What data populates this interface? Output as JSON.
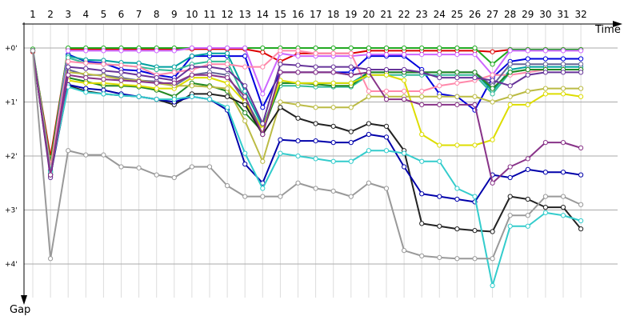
{
  "chart_data": {
    "type": "line",
    "xlabel": "Time",
    "ylabel": "Gap",
    "x": [
      1,
      2,
      3,
      4,
      5,
      6,
      7,
      8,
      9,
      10,
      11,
      12,
      13,
      14,
      15,
      16,
      17,
      18,
      19,
      20,
      21,
      22,
      23,
      24,
      25,
      26,
      27,
      28,
      29,
      30,
      31,
      32
    ],
    "x_tick_labels": [
      "1",
      "2",
      "3",
      "4",
      "5",
      "6",
      "7",
      "8",
      "9",
      "10",
      "11",
      "12",
      "13",
      "14",
      "15",
      "16",
      "17",
      "18",
      "19",
      "20",
      "21",
      "22",
      "23",
      "24",
      "25",
      "26",
      "27",
      "28",
      "29",
      "30",
      "31",
      "32"
    ],
    "y_tick_labels": [
      "+0'",
      "+1'",
      "+2'",
      "+3'",
      "+4'"
    ],
    "y_tick_values": [
      0,
      1,
      2,
      3,
      4
    ],
    "ylim": [
      -0.45,
      4.75
    ],
    "y_inverted": true,
    "series": [
      {
        "color": "#dd0000",
        "values": [
          0.07,
          2.02,
          0.02,
          0.02,
          0.02,
          0.02,
          0.02,
          0.02,
          0.02,
          0.02,
          0.02,
          0.02,
          0.02,
          0.08,
          0.25,
          0.1,
          0.1,
          0.1,
          0.1,
          0.05,
          0.05,
          0.05,
          0.05,
          0.05,
          0.05,
          0.05,
          0.07,
          0.03,
          0.03,
          0.03,
          0.03,
          0.03
        ]
      },
      {
        "color": "#22aa22",
        "values": [
          0.02,
          2.12,
          0.0,
          0.0,
          0.0,
          0.0,
          0.0,
          0.0,
          0.0,
          0.0,
          0.0,
          0.0,
          0.0,
          0.0,
          0.0,
          0.0,
          0.0,
          0.0,
          0.0,
          0.0,
          0.0,
          0.0,
          0.0,
          0.0,
          0.0,
          0.0,
          0.3,
          0.03,
          0.03,
          0.03,
          0.03,
          0.03
        ]
      },
      {
        "color": "#0000dd",
        "values": [
          0.05,
          2.35,
          0.12,
          0.25,
          0.28,
          0.4,
          0.42,
          0.5,
          0.55,
          0.15,
          0.15,
          0.15,
          0.15,
          1.1,
          0.45,
          0.45,
          0.45,
          0.45,
          0.45,
          0.15,
          0.15,
          0.15,
          0.4,
          0.85,
          0.9,
          1.15,
          0.55,
          0.25,
          0.2,
          0.2,
          0.2,
          0.2
        ]
      },
      {
        "color": "#cc66ff",
        "values": [
          0.05,
          2.25,
          0.05,
          0.05,
          0.05,
          0.05,
          0.05,
          0.05,
          0.05,
          0.0,
          0.0,
          0.0,
          0.0,
          0.85,
          0.1,
          0.15,
          0.15,
          0.15,
          0.15,
          0.12,
          0.12,
          0.12,
          0.12,
          0.12,
          0.12,
          0.12,
          0.5,
          0.05,
          0.05,
          0.05,
          0.05,
          0.05
        ]
      },
      {
        "color": "#00a0a0",
        "values": [
          0.05,
          2.28,
          0.15,
          0.22,
          0.23,
          0.27,
          0.28,
          0.35,
          0.35,
          0.15,
          0.1,
          0.1,
          0.8,
          1.45,
          0.65,
          0.65,
          0.65,
          0.65,
          0.65,
          0.45,
          0.45,
          0.45,
          0.45,
          0.45,
          0.45,
          0.45,
          0.8,
          0.4,
          0.35,
          0.35,
          0.35,
          0.35
        ]
      },
      {
        "color": "#33bb99",
        "values": [
          0.05,
          2.3,
          0.18,
          0.28,
          0.3,
          0.32,
          0.35,
          0.4,
          0.42,
          0.3,
          0.25,
          0.25,
          0.95,
          1.5,
          0.7,
          0.7,
          0.72,
          0.72,
          0.72,
          0.5,
          0.5,
          0.5,
          0.5,
          0.5,
          0.5,
          0.5,
          0.85,
          0.45,
          0.4,
          0.4,
          0.4,
          0.4
        ]
      },
      {
        "color": "#ff88aa",
        "values": [
          0.05,
          2.2,
          0.25,
          0.28,
          0.3,
          0.32,
          0.35,
          0.5,
          0.45,
          0.4,
          0.3,
          0.3,
          0.35,
          0.35,
          0.05,
          0.05,
          0.1,
          0.1,
          0.1,
          0.8,
          0.8,
          0.8,
          0.8,
          0.7,
          0.65,
          0.6,
          0.5,
          0.5,
          0.45,
          0.4,
          0.4,
          0.4
        ]
      },
      {
        "color": "#666699",
        "values": [
          0.05,
          2.32,
          0.4,
          0.5,
          0.5,
          0.55,
          0.6,
          0.62,
          0.7,
          0.5,
          0.45,
          0.5,
          1.0,
          1.6,
          0.45,
          0.45,
          0.45,
          0.45,
          0.5,
          0.45,
          0.45,
          0.45,
          0.45,
          0.45,
          0.45,
          0.45,
          0.7,
          0.3,
          0.3,
          0.3,
          0.3,
          0.3
        ]
      },
      {
        "color": "#228822",
        "values": [
          0.05,
          2.35,
          0.55,
          0.62,
          0.7,
          0.7,
          0.72,
          0.78,
          0.9,
          0.65,
          0.7,
          0.8,
          1.2,
          1.55,
          0.65,
          0.65,
          0.67,
          0.7,
          0.7,
          0.45,
          0.45,
          0.45,
          0.45,
          0.45,
          0.45,
          0.45,
          0.75,
          0.45,
          0.4,
          0.4,
          0.4,
          0.4
        ]
      },
      {
        "color": "#dddd00",
        "values": [
          0.05,
          2.3,
          0.6,
          0.65,
          0.65,
          0.68,
          0.7,
          0.75,
          0.75,
          0.55,
          0.55,
          0.65,
          1.0,
          1.5,
          0.6,
          0.65,
          0.65,
          0.65,
          0.65,
          0.5,
          0.5,
          0.6,
          1.6,
          1.8,
          1.8,
          1.8,
          1.7,
          1.05,
          1.05,
          0.85,
          0.85,
          0.9
        ]
      },
      {
        "color": "#bbbb44",
        "values": [
          0.05,
          2.38,
          0.45,
          0.48,
          0.52,
          0.58,
          0.6,
          0.65,
          0.7,
          0.7,
          0.72,
          0.75,
          1.35,
          2.1,
          1.0,
          1.05,
          1.1,
          1.1,
          1.1,
          0.9,
          0.9,
          0.9,
          0.9,
          0.9,
          0.9,
          0.9,
          1.0,
          0.9,
          0.8,
          0.75,
          0.75,
          0.75
        ]
      },
      {
        "color": "#663399",
        "values": [
          0.05,
          2.4,
          0.35,
          0.38,
          0.42,
          0.45,
          0.5,
          0.55,
          0.6,
          0.35,
          0.35,
          0.4,
          0.7,
          1.4,
          0.3,
          0.32,
          0.35,
          0.35,
          0.35,
          0.4,
          0.4,
          0.4,
          0.45,
          0.55,
          0.55,
          0.55,
          0.6,
          0.7,
          0.5,
          0.45,
          0.45,
          0.45
        ]
      },
      {
        "color": "#222222",
        "values": [
          0.05,
          2.35,
          0.7,
          0.8,
          0.85,
          0.88,
          0.9,
          0.95,
          1.05,
          0.85,
          0.85,
          0.9,
          1.05,
          1.6,
          1.1,
          1.3,
          1.4,
          1.45,
          1.55,
          1.4,
          1.45,
          1.9,
          3.25,
          3.3,
          3.35,
          3.38,
          3.4,
          2.75,
          2.8,
          2.95,
          2.95,
          3.35
        ]
      },
      {
        "color": "#0000aa",
        "values": [
          0.05,
          2.35,
          0.68,
          0.75,
          0.78,
          0.85,
          0.9,
          0.95,
          1.0,
          0.9,
          0.95,
          1.15,
          2.15,
          2.5,
          1.7,
          1.72,
          1.72,
          1.75,
          1.75,
          1.6,
          1.65,
          2.2,
          2.7,
          2.75,
          2.8,
          2.85,
          2.35,
          2.4,
          2.25,
          2.3,
          2.3,
          2.35
        ]
      },
      {
        "color": "#33cccc",
        "values": [
          0.05,
          2.3,
          0.72,
          0.82,
          0.85,
          0.88,
          0.9,
          0.95,
          0.95,
          0.9,
          0.95,
          1.1,
          1.95,
          2.6,
          1.95,
          2.0,
          2.05,
          2.1,
          2.1,
          1.9,
          1.9,
          1.95,
          2.1,
          2.1,
          2.6,
          2.75,
          4.4,
          3.3,
          3.3,
          3.05,
          3.1,
          3.2
        ]
      },
      {
        "color": "#883388",
        "values": [
          0.05,
          2.35,
          0.5,
          0.55,
          0.58,
          0.6,
          0.62,
          0.65,
          0.65,
          0.5,
          0.5,
          0.55,
          0.9,
          1.6,
          0.45,
          0.45,
          0.45,
          0.45,
          0.5,
          0.45,
          0.95,
          0.95,
          1.05,
          1.05,
          1.05,
          1.05,
          2.5,
          2.2,
          2.05,
          1.75,
          1.75,
          1.85
        ]
      },
      {
        "color": "#999999",
        "values": [
          0.05,
          3.9,
          1.9,
          1.98,
          1.98,
          2.2,
          2.22,
          2.35,
          2.4,
          2.2,
          2.2,
          2.55,
          2.75,
          2.75,
          2.75,
          2.5,
          2.6,
          2.65,
          2.75,
          2.5,
          2.6,
          3.75,
          3.85,
          3.88,
          3.9,
          3.9,
          3.9,
          3.1,
          3.1,
          2.75,
          2.75,
          2.9
        ]
      }
    ]
  }
}
